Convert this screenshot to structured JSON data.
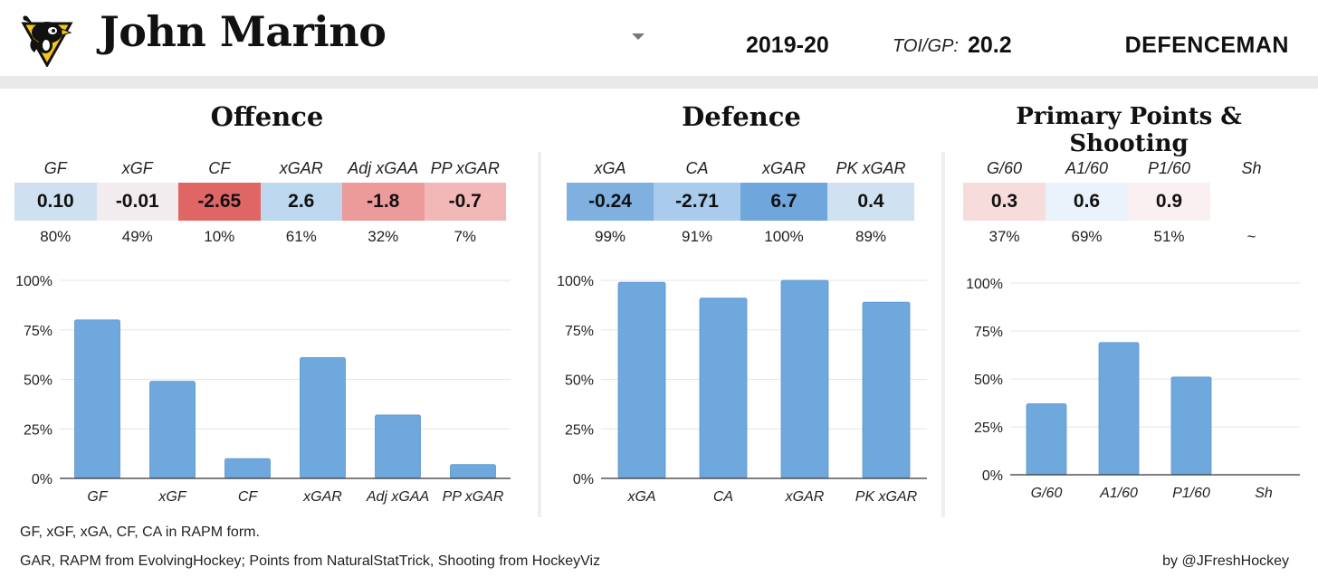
{
  "header": {
    "name": "John Marino",
    "season": "2019-20",
    "toi_label": "TOI/GP:",
    "toi_value": "20.2",
    "position": "DEFENCEMAN",
    "logo_icon": "penguins-logo-icon"
  },
  "sections": {
    "offence": {
      "title": "Offence",
      "stats": [
        {
          "label": "GF",
          "value": "0.10",
          "pct": "80%",
          "bg": "#cfe0f0"
        },
        {
          "label": "xGF",
          "value": "-0.01",
          "pct": "49%",
          "bg": "#f3ecee"
        },
        {
          "label": "CF",
          "value": "-2.65",
          "pct": "10%",
          "bg": "#e06666"
        },
        {
          "label": "xGAR",
          "value": "2.6",
          "pct": "61%",
          "bg": "#bdd7ee"
        },
        {
          "label": "Adj xGAA",
          "value": "-1.8",
          "pct": "32%",
          "bg": "#ec9a9a"
        },
        {
          "label": "PP xGAR",
          "value": "-0.7",
          "pct": "7%",
          "bg": "#f2b8b8"
        }
      ]
    },
    "defence": {
      "title": "Defence",
      "stats": [
        {
          "label": "xGA",
          "value": "-0.24",
          "pct": "99%",
          "bg": "#7fb0e0"
        },
        {
          "label": "CA",
          "value": "-2.71",
          "pct": "91%",
          "bg": "#a9cbec"
        },
        {
          "label": "xGAR",
          "value": "6.7",
          "pct": "100%",
          "bg": "#6fa6dc"
        },
        {
          "label": "PK xGAR",
          "value": "0.4",
          "pct": "89%",
          "bg": "#d0e1f1"
        }
      ]
    },
    "points": {
      "title": "Primary Points & Shooting",
      "stats": [
        {
          "label": "G/60",
          "value": "0.3",
          "pct": "37%",
          "bg": "#f7dcdc"
        },
        {
          "label": "A1/60",
          "value": "0.6",
          "pct": "69%",
          "bg": "#eaf2fb"
        },
        {
          "label": "P1/60",
          "value": "0.9",
          "pct": "51%",
          "bg": "#faf0f1"
        },
        {
          "label": "Sh",
          "value": "",
          "pct": "~",
          "bg": "#ffffff"
        }
      ]
    }
  },
  "chart_data": [
    {
      "type": "bar",
      "categories": [
        "GF",
        "xGF",
        "CF",
        "xGAR",
        "Adj xGAA",
        "PP xGAR"
      ],
      "values": [
        80,
        49,
        10,
        61,
        32,
        7
      ],
      "ylim": [
        0,
        100
      ],
      "yticks": [
        "0%",
        "25%",
        "50%",
        "75%",
        "100%"
      ],
      "bar_color": "#6fa8dc",
      "grid": true
    },
    {
      "type": "bar",
      "categories": [
        "xGA",
        "CA",
        "xGAR",
        "PK xGAR"
      ],
      "values": [
        99,
        91,
        100,
        89
      ],
      "ylim": [
        0,
        100
      ],
      "yticks": [
        "0%",
        "25%",
        "50%",
        "75%",
        "100%"
      ],
      "bar_color": "#6fa8dc",
      "grid": true
    },
    {
      "type": "bar",
      "categories": [
        "G/60",
        "A1/60",
        "P1/60",
        "Sh"
      ],
      "values": [
        37,
        69,
        51,
        null
      ],
      "ylim": [
        0,
        100
      ],
      "yticks": [
        "0%",
        "25%",
        "50%",
        "75%",
        "100%"
      ],
      "bar_color": "#6fa8dc",
      "grid": true
    }
  ],
  "footer": {
    "note1": "GF, xGF, xGA, CF, CA in RAPM form.",
    "note2": "GAR, RAPM from EvolvingHockey; Points from NaturalStatTrick, Shooting from HockeyViz",
    "credit": "by @JFreshHockey"
  }
}
